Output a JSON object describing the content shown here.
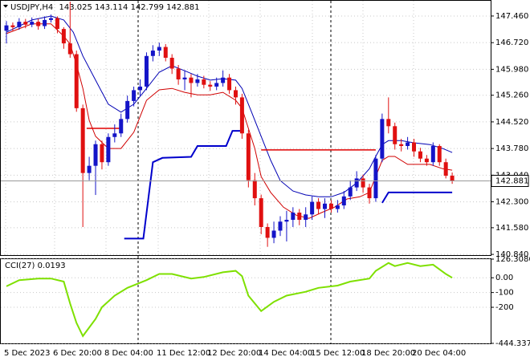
{
  "chart_data": [
    {
      "type": "candlestick",
      "title": "USDJPY,H4",
      "open": [
        147.05,
        147.2,
        147.15,
        147.3,
        147.22,
        147.3,
        147.18,
        147.35,
        147.4,
        147.1,
        146.7,
        146.4,
        144.9,
        143.1,
        143.3,
        143.9,
        143.4,
        144.1,
        144.2,
        144.6,
        145.1,
        145.4,
        145.5,
        146.35,
        146.5,
        146.6,
        146.3,
        146.0,
        145.7,
        145.75,
        145.6,
        145.7,
        145.55,
        145.5,
        145.6,
        145.75,
        145.4,
        145.2,
        144.2,
        142.9,
        142.4,
        141.6,
        141.3,
        141.5,
        141.75,
        141.8,
        142.0,
        141.8,
        141.95,
        142.3,
        142.1,
        142.25,
        142.1,
        142.2,
        142.45,
        142.7,
        142.95,
        142.7,
        142.4,
        143.5,
        144.6,
        144.4,
        143.9,
        143.85,
        143.95,
        143.7,
        143.5,
        143.4,
        143.85,
        143.4,
        143.025
      ],
      "high": [
        147.32,
        147.28,
        147.4,
        147.38,
        147.42,
        147.38,
        147.45,
        147.5,
        147.45,
        147.15,
        147.86,
        146.5,
        145.0,
        143.55,
        144.0,
        144.0,
        144.2,
        144.45,
        144.75,
        145.25,
        145.5,
        145.7,
        146.45,
        146.65,
        146.72,
        146.68,
        146.4,
        146.1,
        145.95,
        145.85,
        145.85,
        145.8,
        145.65,
        145.75,
        145.95,
        145.85,
        145.5,
        145.3,
        144.3,
        143.1,
        142.5,
        141.7,
        141.75,
        141.9,
        142.05,
        142.15,
        142.1,
        142.15,
        142.45,
        142.4,
        142.4,
        142.35,
        142.35,
        142.6,
        142.9,
        143.15,
        143.05,
        142.8,
        143.6,
        144.75,
        145.2,
        144.5,
        144.05,
        144.1,
        144.05,
        143.8,
        143.6,
        143.95,
        143.9,
        143.5,
        143.114
      ],
      "low": [
        146.7,
        147.05,
        147.08,
        147.12,
        147.15,
        147.08,
        147.1,
        147.28,
        146.98,
        146.55,
        146.3,
        144.8,
        141.6,
        142.9,
        142.49,
        143.2,
        143.3,
        143.95,
        144.1,
        144.5,
        144.95,
        145.25,
        145.4,
        146.2,
        146.35,
        146.2,
        145.85,
        145.55,
        145.4,
        145.2,
        145.5,
        145.45,
        145.38,
        145.4,
        145.5,
        145.3,
        145.0,
        144.05,
        142.7,
        142.2,
        141.4,
        141.05,
        141.15,
        141.35,
        141.2,
        141.6,
        141.65,
        141.6,
        141.8,
        141.95,
        141.85,
        142.0,
        142.0,
        142.1,
        142.35,
        142.6,
        142.55,
        142.25,
        142.3,
        143.4,
        144.2,
        143.75,
        143.7,
        143.75,
        143.55,
        143.4,
        143.3,
        143.3,
        143.3,
        142.95,
        142.799
      ],
      "close": [
        147.2,
        147.15,
        147.3,
        147.22,
        147.3,
        147.18,
        147.35,
        147.4,
        147.1,
        146.7,
        146.4,
        144.9,
        143.1,
        143.3,
        143.9,
        143.4,
        144.1,
        144.2,
        144.6,
        145.1,
        145.4,
        145.5,
        146.35,
        146.5,
        146.6,
        146.3,
        146.0,
        145.7,
        145.75,
        145.6,
        145.7,
        145.55,
        145.5,
        145.6,
        145.75,
        145.4,
        145.2,
        144.2,
        142.9,
        142.4,
        141.6,
        141.3,
        141.5,
        141.75,
        141.8,
        142.0,
        141.8,
        141.95,
        142.3,
        142.1,
        142.25,
        142.1,
        142.2,
        142.45,
        142.7,
        142.95,
        142.7,
        142.4,
        143.5,
        144.6,
        144.4,
        143.9,
        143.85,
        143.95,
        143.7,
        143.5,
        143.4,
        143.85,
        143.4,
        143.025,
        142.881
      ],
      "up_color": "#1414c8",
      "down_color": "#e01010",
      "overlays": [
        {
          "color": "#d00000",
          "x": [
            0,
            4,
            7,
            9,
            10,
            11,
            12,
            13,
            14,
            16,
            18,
            20,
            21,
            22,
            24,
            26,
            28,
            30,
            32,
            34,
            36,
            37,
            38,
            39,
            40,
            41.5,
            43.5,
            45.5,
            47.5,
            49.5,
            51.5,
            53.5,
            55.5,
            57,
            58,
            59,
            60,
            61,
            63,
            65,
            66.5,
            68.5,
            70
          ],
          "values": [
            146.97,
            147.24,
            147.24,
            146.9,
            146.68,
            146.12,
            145.45,
            144.56,
            144.12,
            143.78,
            143.78,
            144.23,
            144.67,
            145.12,
            145.41,
            145.45,
            145.34,
            145.27,
            145.27,
            145.34,
            145.12,
            144.9,
            144.34,
            143.78,
            143.0,
            142.56,
            142.15,
            141.93,
            141.84,
            142.0,
            142.15,
            142.38,
            142.44,
            142.56,
            143.0,
            143.45,
            143.56,
            143.56,
            143.34,
            143.34,
            143.34,
            143.22,
            143.18
          ]
        },
        {
          "color": "#0000b4",
          "x": [
            0,
            4,
            7,
            9,
            10.5,
            12,
            14,
            16,
            18,
            20,
            22,
            24,
            26,
            28,
            30,
            32,
            34,
            36,
            37,
            38.5,
            40,
            41.5,
            43,
            45,
            47,
            49,
            51,
            53,
            55,
            57,
            58,
            59,
            60,
            62,
            64,
            66.5,
            68.5,
            70
          ],
          "values": [
            147.01,
            147.35,
            147.46,
            147.35,
            147.01,
            146.35,
            145.68,
            145.01,
            144.79,
            145.01,
            145.45,
            145.9,
            146.08,
            145.94,
            145.79,
            145.68,
            145.72,
            145.68,
            145.45,
            144.79,
            144.12,
            143.45,
            142.89,
            142.6,
            142.49,
            142.44,
            142.44,
            142.56,
            142.82,
            143.22,
            143.56,
            143.89,
            144.0,
            144.0,
            143.94,
            143.89,
            143.78,
            143.67
          ]
        },
        {
          "color": "#0000cc",
          "x": [
            18.5,
            21.5,
            23,
            24.5,
            29,
            30,
            34.5,
            35.5,
            37
          ],
          "values": [
            141.28,
            141.28,
            143.4,
            143.52,
            143.55,
            143.85,
            143.85,
            144.27,
            144.27
          ]
        },
        {
          "color": "#0000cc",
          "x": [
            59,
            60,
            70
          ],
          "values": [
            142.27,
            142.56,
            142.56
          ]
        },
        {
          "color": "#e00000",
          "x": [
            12.6,
            18
          ],
          "values": [
            144.34,
            144.34
          ]
        },
        {
          "color": "#e00000",
          "x": [
            40,
            58
          ],
          "values": [
            143.74,
            143.74
          ]
        }
      ],
      "ylim": [
        140.82,
        147.86
      ],
      "yticks": [
        {
          "value": 147.46,
          "label": "147.460"
        },
        {
          "value": 146.72,
          "label": "146.720"
        },
        {
          "value": 145.98,
          "label": "145.980"
        },
        {
          "value": 145.26,
          "label": "145.260"
        },
        {
          "value": 144.52,
          "label": "144.520"
        },
        {
          "value": 143.78,
          "label": "143.780"
        },
        {
          "value": 143.04,
          "label": "143.040"
        },
        {
          "value": 142.3,
          "label": "142.300"
        },
        {
          "value": 141.58,
          "label": "141.580"
        },
        {
          "value": 140.84,
          "label": "140.840"
        }
      ],
      "x_labels": [
        "5 Dec 2023",
        "6 Dec 20:00",
        "8 Dec 04:00",
        "11 Dec 12:00",
        "12 Dec 20:00",
        "14 Dec 04:00",
        "15 Dec 12:00",
        "18 Dec 20:00",
        "20 Dec 04:00"
      ],
      "grid": true
    },
    {
      "type": "line",
      "name": "CCI(27)",
      "color": "#7ee000",
      "x": [
        0,
        2,
        5,
        7,
        9,
        10,
        11,
        12,
        14,
        15,
        17,
        19,
        22,
        24,
        26,
        29,
        31,
        34,
        36,
        37,
        38,
        40,
        42,
        44,
        47,
        49,
        52,
        54,
        57,
        58,
        60,
        61,
        63,
        65,
        67,
        69,
        70
      ],
      "values": [
        -58,
        -16,
        -5,
        -5,
        -26,
        -174,
        -305,
        -395,
        -279,
        -200,
        -121,
        -68,
        -16,
        26,
        26,
        -5,
        5,
        37,
        47,
        11,
        -121,
        -226,
        -163,
        -121,
        -95,
        -68,
        -53,
        -26,
        -5,
        47,
        100,
        79,
        100,
        79,
        89,
        26,
        0.0193
      ],
      "ylim": [
        -444.337,
        126.3086
      ],
      "yticks": [
        126.3086,
        {
          "value": 0,
          "label": "0.00"
        },
        -100,
        -200,
        -444.337
      ]
    }
  ]
}
